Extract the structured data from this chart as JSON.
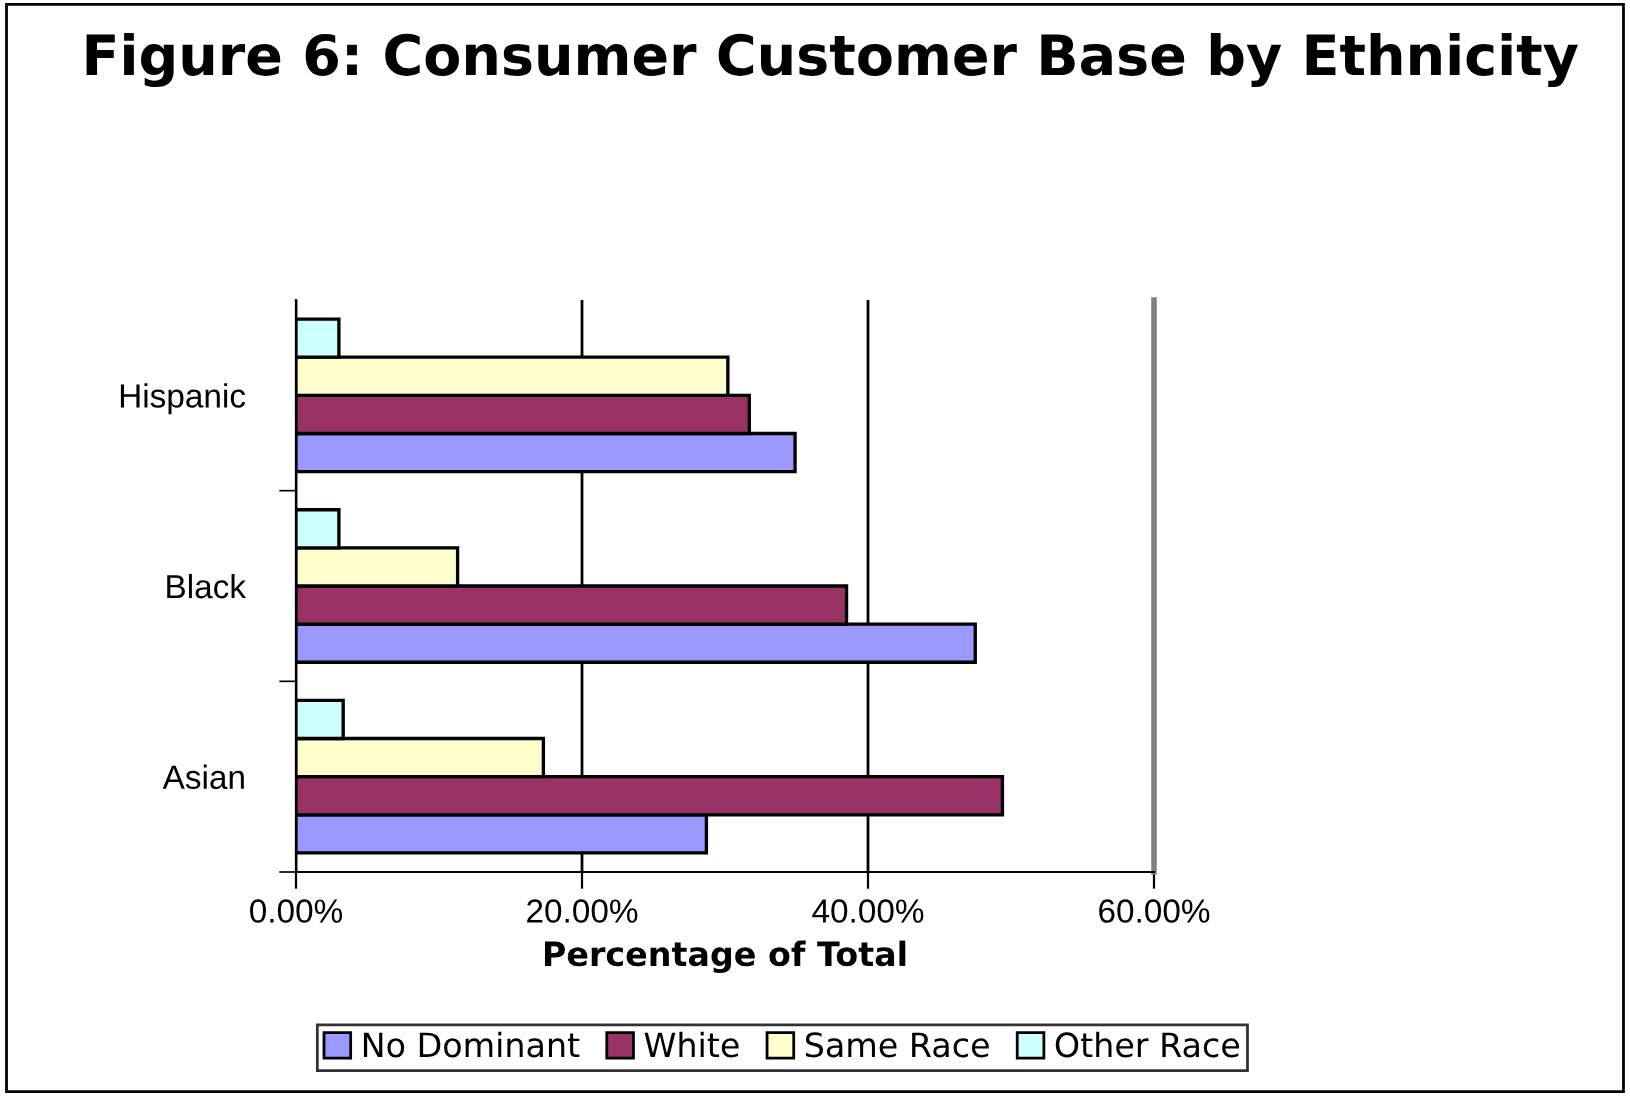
{
  "chart_data": {
    "type": "bar",
    "orientation": "horizontal",
    "title": "Figure 6: Consumer Customer Base by Ethnicity",
    "xlabel": "Percentage of Total",
    "categories": [
      "Hispanic",
      "Black",
      "Asian"
    ],
    "series": [
      {
        "name": "No Dominant",
        "color": "#9999ff",
        "values": [
          34.9,
          47.5,
          28.7
        ]
      },
      {
        "name": "White",
        "color": "#993366",
        "values": [
          31.7,
          38.5,
          49.4
        ]
      },
      {
        "name": "Same Race",
        "color": "#ffffcc",
        "values": [
          30.2,
          11.3,
          17.3
        ]
      },
      {
        "name": "Other Race",
        "color": "#ccffff",
        "values": [
          3.0,
          3.0,
          3.3
        ]
      }
    ],
    "xlim": [
      0,
      60
    ],
    "xticks": [
      {
        "value": 0,
        "label": "0.00%"
      },
      {
        "value": 20,
        "label": "20.00%"
      },
      {
        "value": 40,
        "label": "40.00%"
      },
      {
        "value": 60,
        "label": "60.00%"
      }
    ],
    "grid": "x",
    "legend": "bottom"
  }
}
